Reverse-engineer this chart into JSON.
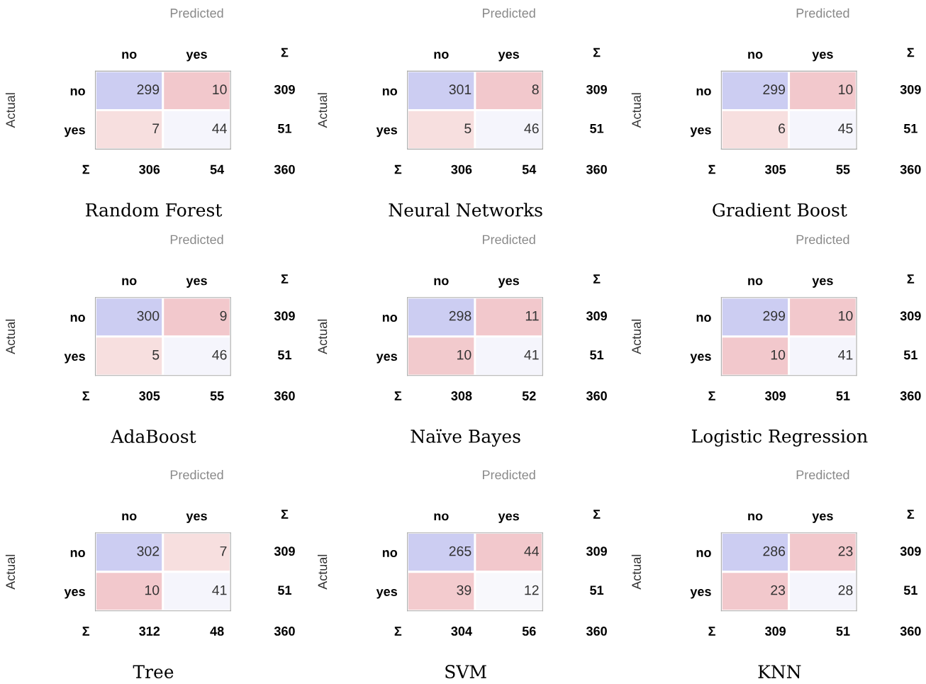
{
  "chart_data": [
    {
      "type": "heatmap",
      "title": "Random Forest",
      "xlabel": "Predicted",
      "ylabel": "Actual",
      "categories": [
        "no",
        "yes"
      ],
      "y_categories": [
        "no",
        "yes"
      ],
      "y2_categories": [
        "309",
        "51"
      ],
      "totals": [
        "306",
        "54",
        "360"
      ],
      "annotations": [
        "Σ",
        "Σ"
      ],
      "data_labels": true,
      "cells": [
        [
          299,
          10
        ],
        [
          7,
          44
        ]
      ],
      "colors": [
        [
          "#cccdf2",
          "#f2c8cc"
        ],
        [
          "#f7dfdf",
          "#f5f5fc"
        ]
      ]
    },
    {
      "type": "heatmap",
      "title": "Neural Networks",
      "xlabel": "Predicted",
      "ylabel": "Actual",
      "categories": [
        "no",
        "yes"
      ],
      "y_categories": [
        "no",
        "yes"
      ],
      "y2_categories": [
        "309",
        "51"
      ],
      "totals": [
        "306",
        "54",
        "360"
      ],
      "annotations": [
        "Σ",
        "Σ"
      ],
      "data_labels": true,
      "cells": [
        [
          301,
          8
        ],
        [
          5,
          46
        ]
      ],
      "colors": [
        [
          "#cccdf2",
          "#f2c8cc"
        ],
        [
          "#f7dfdf",
          "#f5f5fc"
        ]
      ]
    },
    {
      "type": "heatmap",
      "title": "Gradient Boost",
      "xlabel": "Predicted",
      "ylabel": "Actual",
      "categories": [
        "no",
        "yes"
      ],
      "y_categories": [
        "no",
        "yes"
      ],
      "y2_categories": [
        "309",
        "51"
      ],
      "totals": [
        "305",
        "55",
        "360"
      ],
      "annotations": [
        "Σ",
        "Σ"
      ],
      "data_labels": true,
      "cells": [
        [
          299,
          10
        ],
        [
          6,
          45
        ]
      ],
      "colors": [
        [
          "#cccdf2",
          "#f2c8cc"
        ],
        [
          "#f7dfdf",
          "#f5f5fc"
        ]
      ]
    },
    {
      "type": "heatmap",
      "title": "AdaBoost",
      "xlabel": "Predicted",
      "ylabel": "Actual",
      "categories": [
        "no",
        "yes"
      ],
      "y_categories": [
        "no",
        "yes"
      ],
      "y2_categories": [
        "309",
        "51"
      ],
      "totals": [
        "305",
        "55",
        "360"
      ],
      "annotations": [
        "Σ",
        "Σ"
      ],
      "data_labels": true,
      "cells": [
        [
          300,
          9
        ],
        [
          5,
          46
        ]
      ],
      "colors": [
        [
          "#cccdf2",
          "#f2c8cc"
        ],
        [
          "#f7dfdf",
          "#f5f5fc"
        ]
      ]
    },
    {
      "type": "heatmap",
      "title": "Naïve Bayes",
      "xlabel": "Predicted",
      "ylabel": "Actual",
      "categories": [
        "no",
        "yes"
      ],
      "y_categories": [
        "no",
        "yes"
      ],
      "y2_categories": [
        "309",
        "51"
      ],
      "totals": [
        "308",
        "52",
        "360"
      ],
      "annotations": [
        "Σ",
        "Σ"
      ],
      "data_labels": true,
      "cells": [
        [
          298,
          11
        ],
        [
          10,
          41
        ]
      ],
      "colors": [
        [
          "#cccdf2",
          "#f2c8cc"
        ],
        [
          "#f2cacd",
          "#f5f5fc"
        ]
      ]
    },
    {
      "type": "heatmap",
      "title": "Logistic Regression",
      "xlabel": "Predicted",
      "ylabel": "Actual",
      "categories": [
        "no",
        "yes"
      ],
      "y_categories": [
        "no",
        "yes"
      ],
      "y2_categories": [
        "309",
        "51"
      ],
      "totals": [
        "309",
        "51",
        "360"
      ],
      "annotations": [
        "Σ",
        "Σ"
      ],
      "data_labels": true,
      "cells": [
        [
          299,
          10
        ],
        [
          10,
          41
        ]
      ],
      "colors": [
        [
          "#cccdf2",
          "#f2c8cc"
        ],
        [
          "#f2c8cc",
          "#f5f5fc"
        ]
      ]
    },
    {
      "type": "heatmap",
      "title": "Tree",
      "xlabel": "Predicted",
      "ylabel": "Actual",
      "categories": [
        "no",
        "yes"
      ],
      "y_categories": [
        "no",
        "yes"
      ],
      "y2_categories": [
        "309",
        "51"
      ],
      "totals": [
        "312",
        "48",
        "360"
      ],
      "annotations": [
        "Σ",
        "Σ"
      ],
      "data_labels": true,
      "cells": [
        [
          302,
          7
        ],
        [
          10,
          41
        ]
      ],
      "colors": [
        [
          "#cccdf2",
          "#f7dfdf"
        ],
        [
          "#f2c8cc",
          "#f5f5fc"
        ]
      ]
    },
    {
      "type": "heatmap",
      "title": "SVM",
      "xlabel": "Predicted",
      "ylabel": "Actual",
      "categories": [
        "no",
        "yes"
      ],
      "y_categories": [
        "no",
        "yes"
      ],
      "y2_categories": [
        "309",
        "51"
      ],
      "totals": [
        "304",
        "56",
        "360"
      ],
      "annotations": [
        "Σ",
        "Σ"
      ],
      "data_labels": true,
      "cells": [
        [
          265,
          44
        ],
        [
          39,
          12
        ]
      ],
      "colors": [
        [
          "#cccdf2",
          "#f2c8cc"
        ],
        [
          "#f3cbce",
          "#f8f8fc"
        ]
      ]
    },
    {
      "type": "heatmap",
      "title": "KNN",
      "xlabel": "Predicted",
      "ylabel": "Actual",
      "categories": [
        "no",
        "yes"
      ],
      "y_categories": [
        "no",
        "yes"
      ],
      "y2_categories": [
        "309",
        "51"
      ],
      "totals": [
        "309",
        "51",
        "360"
      ],
      "annotations": [
        "Σ",
        "Σ"
      ],
      "data_labels": true,
      "cells": [
        [
          286,
          23
        ],
        [
          23,
          28
        ]
      ],
      "colors": [
        [
          "#cccdf2",
          "#f2c8cc"
        ],
        [
          "#f2c8cc",
          "#f5f5fc"
        ]
      ]
    }
  ]
}
